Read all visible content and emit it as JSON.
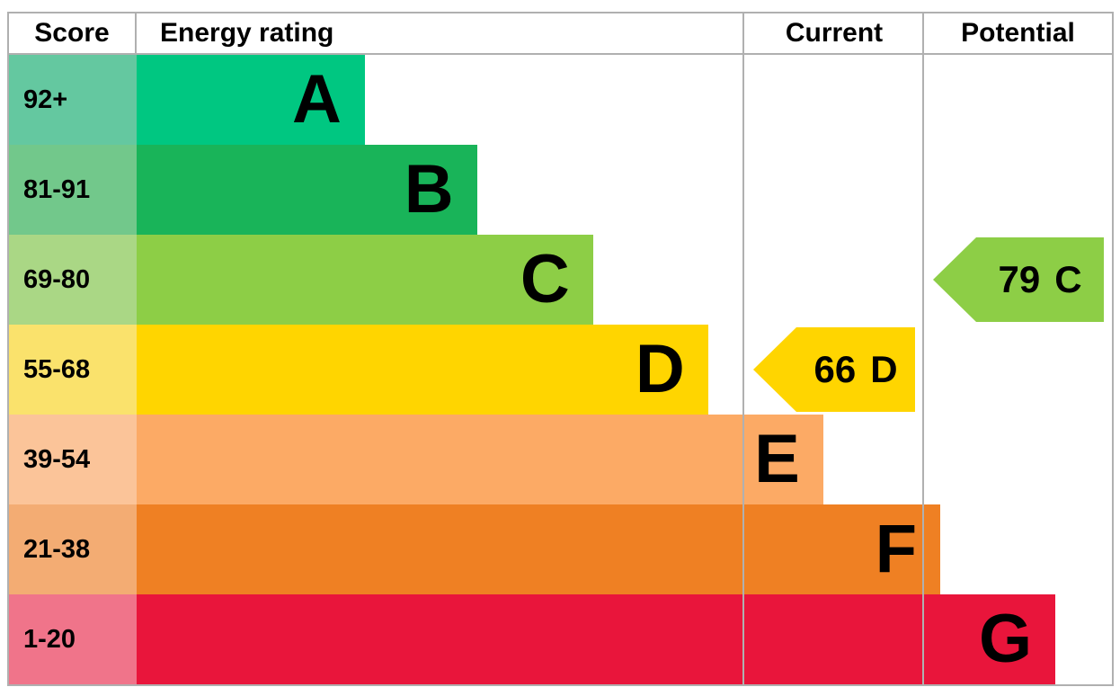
{
  "header": {
    "score": "Score",
    "energy_rating": "Energy rating",
    "current": "Current",
    "potential": "Potential"
  },
  "chart_data": {
    "type": "bar",
    "subtype": "epc-energy-rating",
    "categories": [
      "A",
      "B",
      "C",
      "D",
      "E",
      "F",
      "G"
    ],
    "bands": [
      {
        "range": "92+",
        "letter": "A",
        "bar_color": "#00c781",
        "score_color": "#64c8a0",
        "bar_width_pct": 23.4
      },
      {
        "range": "81-91",
        "letter": "B",
        "bar_color": "#19b459",
        "score_color": "#72c88b",
        "bar_width_pct": 34.9
      },
      {
        "range": "69-80",
        "letter": "C",
        "bar_color": "#8dce46",
        "score_color": "#aad785",
        "bar_width_pct": 46.8
      },
      {
        "range": "55-68",
        "letter": "D",
        "bar_color": "#ffd500",
        "score_color": "#fae26c",
        "bar_width_pct": 58.6
      },
      {
        "range": "39-54",
        "letter": "E",
        "bar_color": "#fcaa65",
        "score_color": "#fbc499",
        "bar_width_pct": 70.4
      },
      {
        "range": "21-38",
        "letter": "F",
        "bar_color": "#ef8023",
        "score_color": "#f3ac73",
        "bar_width_pct": 82.4
      },
      {
        "range": "1-20",
        "letter": "G",
        "bar_color": "#e9153b",
        "score_color": "#f0748a",
        "bar_width_pct": 94.2
      }
    ],
    "current": {
      "score": 66,
      "band": "D",
      "arrow_color": "#ffd500",
      "band_index": 3
    },
    "potential": {
      "score": 79,
      "band": "C",
      "arrow_color": "#8dce46",
      "band_index": 2
    }
  },
  "colors": {
    "table_border": "#b0b0b0",
    "text": "#000000",
    "background": "#ffffff"
  }
}
